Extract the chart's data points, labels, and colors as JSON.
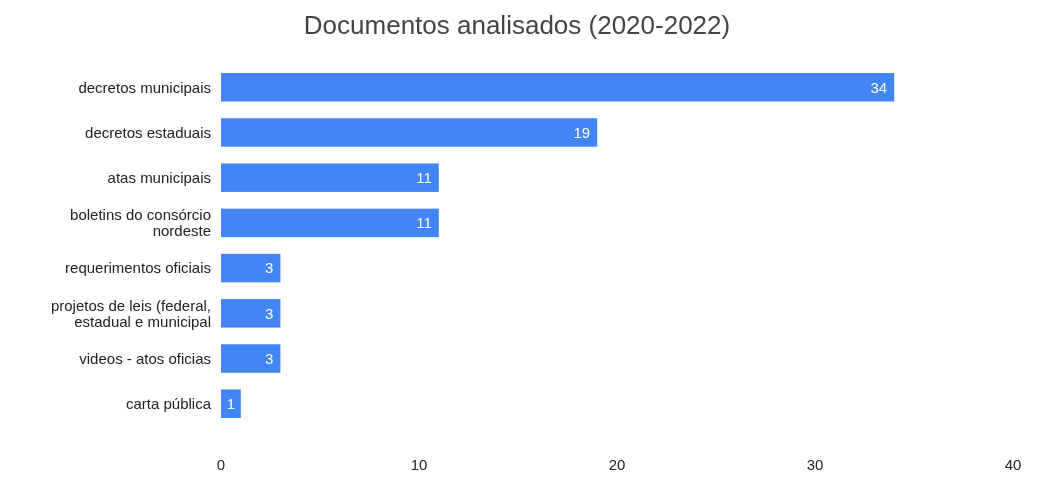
{
  "chart_data": {
    "type": "bar",
    "orientation": "horizontal",
    "title": "Documentos analisados (2020-2022)",
    "categories": [
      "decretos municipais",
      "decretos estaduais",
      "atas municipais",
      "boletins do consórcio nordeste",
      "requerimentos oficiais",
      "projetos de leis (federal, estadual e municipal",
      "videos - atos oficias",
      "carta pública"
    ],
    "values": [
      34,
      19,
      11,
      11,
      3,
      3,
      3,
      1
    ],
    "color": "#4285f4",
    "xlim": [
      0,
      40
    ],
    "xticks": [
      0,
      10,
      20,
      30,
      40
    ],
    "grid": false,
    "data_labels": true
  }
}
